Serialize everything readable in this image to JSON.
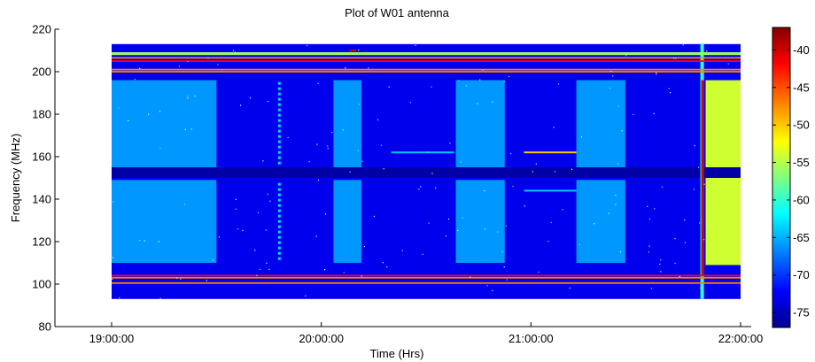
{
  "chart_data": {
    "type": "heatmap",
    "title": "Plot of W01 antenna",
    "xlabel": "Time (Hrs)",
    "ylabel": "Frequency (MHz)",
    "x_ticks": [
      "19:00:00",
      "20:00:00",
      "21:00:00",
      "22:00:00"
    ],
    "x_range_hours": [
      19.0,
      22.0
    ],
    "y_ticks": [
      80,
      100,
      120,
      140,
      160,
      180,
      200,
      220
    ],
    "ylim": [
      80,
      220
    ],
    "data_extent": {
      "time_start_hours": 19.0,
      "time_end_hours": 22.0,
      "freq_min": 93,
      "freq_max": 213
    },
    "colorbar": {
      "ticks": [
        -40,
        -45,
        -50,
        -55,
        -60,
        -65,
        -70,
        -75
      ],
      "range": [
        -77,
        -37
      ],
      "colormap": "jet",
      "colors": [
        "#00008f",
        "#0000ff",
        "#00ffff",
        "#ffff00",
        "#ff0000",
        "#800000"
      ]
    },
    "regions": {
      "background_level": -73,
      "guard_band_freq": [
        150,
        155
      ],
      "strong_lines_freq": [
        100.5,
        103,
        104,
        200,
        201,
        205,
        206.5
      ],
      "bright_blocks": [
        {
          "time_start": "19:00:00",
          "time_end": "19:30:00",
          "freq_ranges": [
            [
              110,
              149
            ],
            [
              155,
              196
            ]
          ],
          "level": -66
        },
        {
          "time_start": "20:03:30",
          "time_end": "20:11:30",
          "freq_ranges": [
            [
              110,
              149
            ],
            [
              155,
              196
            ]
          ],
          "level": -66
        },
        {
          "time_start": "20:38:30",
          "time_end": "20:52:30",
          "freq_ranges": [
            [
              110,
              149
            ],
            [
              155,
              196
            ]
          ],
          "level": -66
        },
        {
          "time_start": "21:13:00",
          "time_end": "21:27:00",
          "freq_ranges": [
            [
              110,
              149
            ],
            [
              155,
              196
            ]
          ],
          "level": -66
        }
      ],
      "final_block": {
        "time_start": "21:50:00",
        "time_end": "22:00:00",
        "freq_ranges": [
          [
            109,
            150
          ],
          [
            155,
            196
          ]
        ],
        "level": -54
      },
      "burst_time": "21:49:00",
      "dotted_column_time": "19:48:00",
      "narrow_lines": [
        {
          "freq": 162,
          "time_start": "20:20:00",
          "time_end": "20:38:00",
          "level": -64
        },
        {
          "freq": 162,
          "time_start": "20:58:00",
          "time_end": "21:13:00",
          "level": -50
        },
        {
          "freq": 144,
          "time_start": "20:58:00",
          "time_end": "21:13:00",
          "level": -64
        },
        {
          "freq": 210,
          "time_start": "20:08:00",
          "time_end": "20:10:00",
          "level": -40
        }
      ]
    }
  }
}
